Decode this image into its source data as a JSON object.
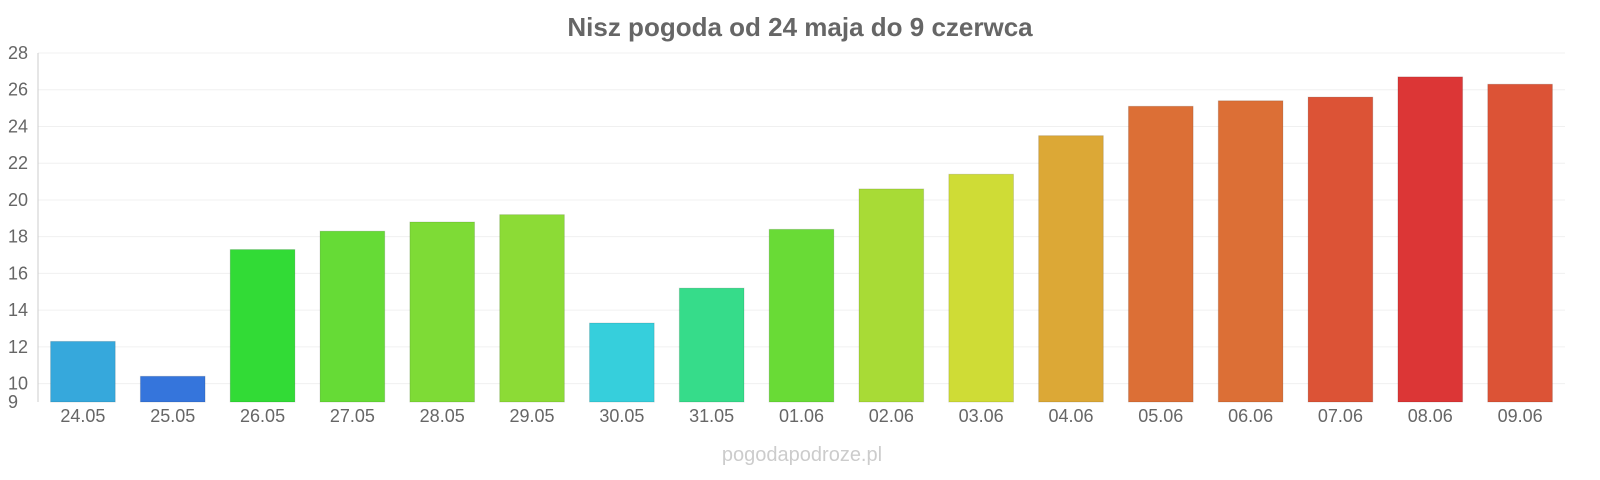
{
  "chart_data": {
    "type": "bar",
    "title": "Nisz pogoda od 24 maja do 9 czerwca",
    "xlabel": "",
    "ylabel": "",
    "categories": [
      "24.05",
      "25.05",
      "26.05",
      "27.05",
      "28.05",
      "29.05",
      "30.05",
      "31.05",
      "01.06",
      "02.06",
      "03.06",
      "04.06",
      "05.06",
      "06.06",
      "07.06",
      "08.06",
      "09.06"
    ],
    "values": [
      12.3,
      10.4,
      17.3,
      18.3,
      18.8,
      19.2,
      13.3,
      15.2,
      18.4,
      20.6,
      21.4,
      23.5,
      25.1,
      25.4,
      25.6,
      26.7,
      26.3
    ],
    "bar_colors": [
      "#36a8dc",
      "#3575dc",
      "#32db36",
      "#66db36",
      "#7edb36",
      "#8cdb36",
      "#36cfdc",
      "#36dc8a",
      "#69db36",
      "#a8db36",
      "#cfdc36",
      "#dca836",
      "#dc6f36",
      "#dc6f36",
      "#dc5336",
      "#dc3636",
      "#dc5336"
    ],
    "ylim": [
      9,
      28
    ],
    "yticks": [
      9,
      10,
      12,
      14,
      16,
      18,
      20,
      22,
      24,
      26,
      28
    ],
    "grid": true,
    "legend": "none",
    "watermark": "pogodapodroze.pl"
  }
}
